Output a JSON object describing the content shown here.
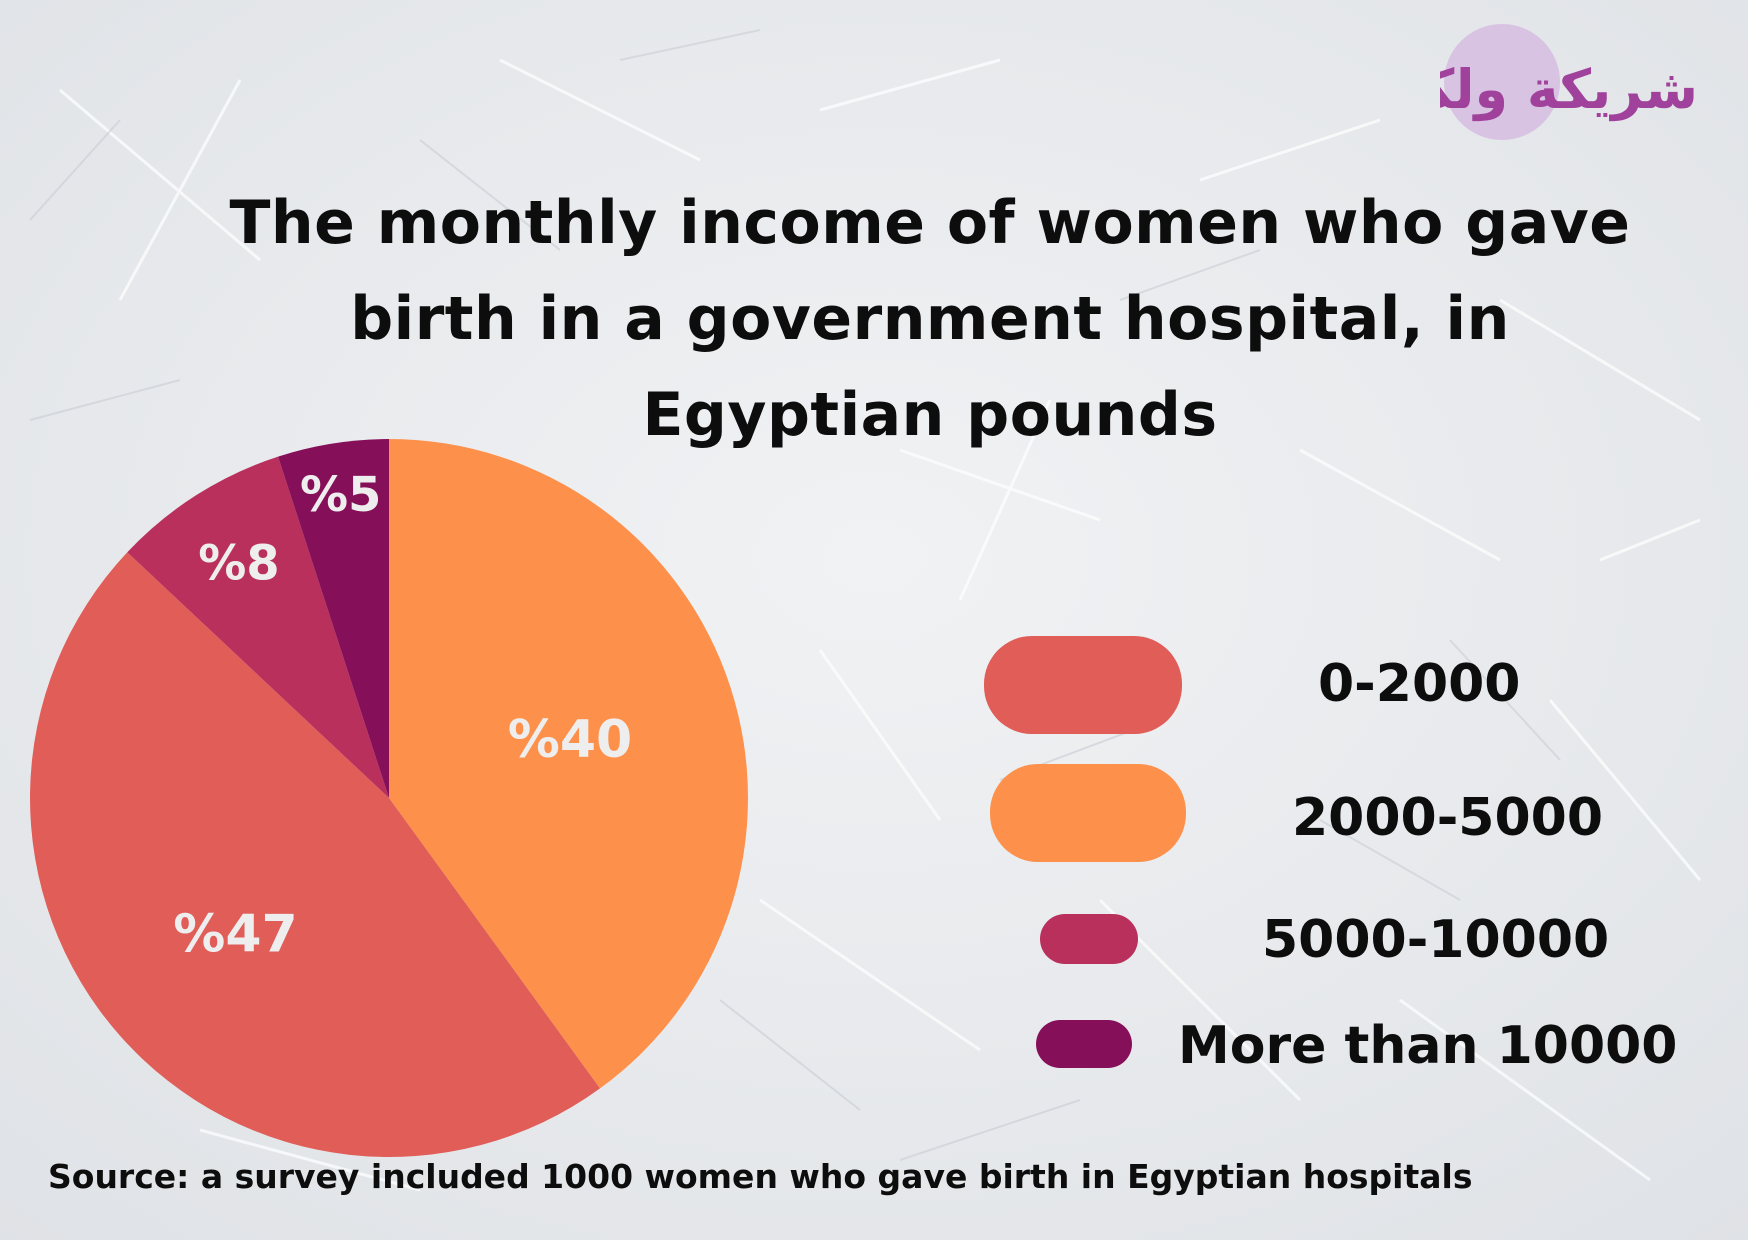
{
  "title_lines": [
    "The monthly income of women who gave",
    "birth in a government hospital, in",
    "Egyptian pounds"
  ],
  "source": "Source: a survey included 1000 women who gave birth in Egyptian hospitals",
  "logo_text": "شريكة ولكن",
  "colors": {
    "background": "#eceef0",
    "slice_0_2000": "#e05d58",
    "slice_2000_5000": "#fd914b",
    "slice_5000_10000": "#b8305b",
    "slice_more_10000": "#850f59",
    "label_text": "#eeeeee",
    "logo_purple": "#a0429b",
    "logo_circle": "#d9c3e3"
  },
  "chart_data": {
    "type": "pie",
    "title": "The monthly income of women who gave birth in a government hospital, in Egyptian pounds",
    "start_angle_deg": 0,
    "direction": "clockwise",
    "order": [
      "2000-5000",
      "0-2000",
      "5000-10000",
      "More than 10000"
    ],
    "slices": [
      {
        "label": "0-2000",
        "value": 47,
        "value_label": "%47",
        "color": "#e05d58"
      },
      {
        "label": "2000-5000",
        "value": 40,
        "value_label": "%40",
        "color": "#fd914b"
      },
      {
        "label": "5000-10000",
        "value": 8,
        "value_label": "%8",
        "color": "#b8305b"
      },
      {
        "label": "More than 10000",
        "value": 5,
        "value_label": "%5",
        "color": "#850f59"
      }
    ],
    "legend_position": "right"
  }
}
